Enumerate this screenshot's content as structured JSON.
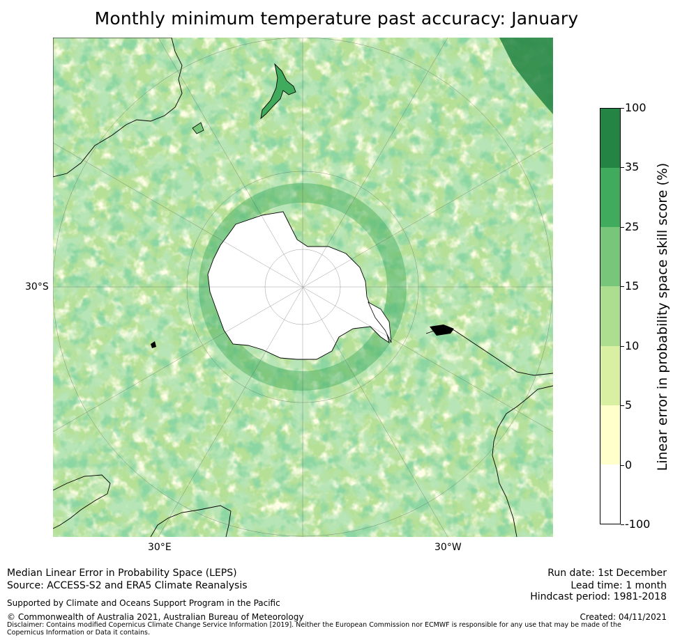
{
  "title": "Monthly minimum temperature past accuracy: January",
  "map": {
    "projection": "south polar stereographic",
    "labels": {
      "lat": "30°S",
      "lon_left": "30°E",
      "lon_right": "30°W"
    },
    "landmasses": [
      "Antarctica",
      "Australia",
      "New Zealand",
      "South America",
      "Southern Africa"
    ]
  },
  "colorbar": {
    "title": "Linear error in probability space skill score (%)",
    "ticks": [
      "100",
      "35",
      "25",
      "15",
      "10",
      "5",
      "0",
      "-100"
    ],
    "bins": [
      {
        "from": -100,
        "to": 0,
        "color": "#ffffff"
      },
      {
        "from": 0,
        "to": 5,
        "color": "#ffffcc"
      },
      {
        "from": 5,
        "to": 10,
        "color": "#d9f0a3"
      },
      {
        "from": 10,
        "to": 15,
        "color": "#addd8e"
      },
      {
        "from": 15,
        "to": 25,
        "color": "#78c679"
      },
      {
        "from": 25,
        "to": 35,
        "color": "#41ab5d"
      },
      {
        "from": 35,
        "to": 100,
        "color": "#238443"
      }
    ]
  },
  "footer": {
    "line1": "Median Linear Error in Probability Space (LEPS)",
    "line2": "Source: ACCESS-S2 and ERA5 Climate Reanalysis",
    "supported": "Supported by Climate and Oceans Support Program in the Pacific",
    "copyright": "© Commonwealth of Australia 2021, Australian Bureau of Meteorology",
    "disclaimer": "Disclaimer: Contains modified Copernicus Climate Change Service Information [2019]. Neither the European Commission nor ECMWF is responsible for any use that may be made of the Copernicus Information or Data it contains.",
    "run_date": "Run date: 1st December",
    "lead_time": "Lead time: 1 month",
    "hindcast": "Hindcast period: 1981-2018",
    "created": "Created: 04/11/2021"
  }
}
